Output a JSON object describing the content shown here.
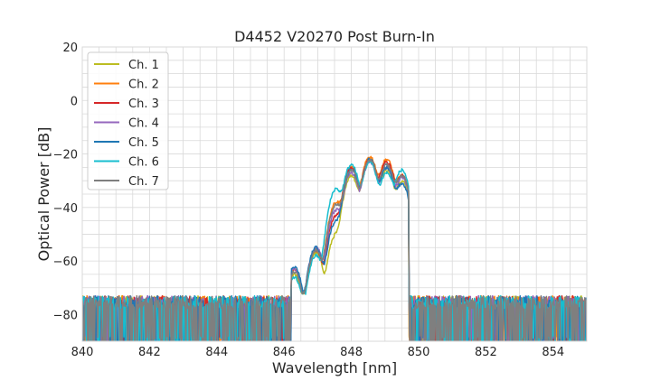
{
  "chart_data": {
    "type": "line",
    "title": "D4452 V20270 Post Burn-In",
    "xlabel": "Wavelength [nm]",
    "ylabel": "Optical Power [dB]",
    "xlim": [
      840,
      855
    ],
    "ylim": [
      -90,
      20
    ],
    "x_ticks": [
      840,
      842,
      844,
      846,
      848,
      850,
      852,
      854
    ],
    "x_tick_labels": [
      "840",
      "842",
      "844",
      "846",
      "848",
      "850",
      "852",
      "854"
    ],
    "y_ticks": [
      20,
      0,
      -20,
      -40,
      -60,
      -80
    ],
    "y_tick_labels": [
      "20",
      "0",
      "−20",
      "−40",
      "−60",
      "−80"
    ],
    "x_minor_step": 0.5,
    "y_minor_step": 5,
    "grid": true,
    "legend_position": "top-left",
    "noise_floor_mean": -76,
    "passband": [
      846.2,
      849.7
    ],
    "series": [
      {
        "name": "Ch. 1",
        "color": "#bcbd22",
        "peaks": [
          [
            846.3,
            -65
          ],
          [
            846.95,
            -57
          ],
          [
            847.55,
            -50
          ],
          [
            848.0,
            -28
          ],
          [
            848.55,
            -22
          ],
          [
            849.05,
            -26
          ],
          [
            849.5,
            -30
          ]
        ]
      },
      {
        "name": "Ch. 2",
        "color": "#ff7f0e",
        "peaks": [
          [
            846.3,
            -63
          ],
          [
            846.95,
            -56
          ],
          [
            847.55,
            -38
          ],
          [
            848.0,
            -25
          ],
          [
            848.55,
            -21
          ],
          [
            849.05,
            -22
          ],
          [
            849.5,
            -28
          ]
        ]
      },
      {
        "name": "Ch. 3",
        "color": "#d62728",
        "peaks": [
          [
            846.3,
            -63
          ],
          [
            846.95,
            -56
          ],
          [
            847.55,
            -43
          ],
          [
            848.0,
            -25
          ],
          [
            848.55,
            -22
          ],
          [
            849.05,
            -23
          ],
          [
            849.5,
            -28
          ]
        ]
      },
      {
        "name": "Ch. 4",
        "color": "#9467bd",
        "peaks": [
          [
            846.3,
            -63
          ],
          [
            846.95,
            -55
          ],
          [
            847.55,
            -41
          ],
          [
            848.0,
            -27
          ],
          [
            848.55,
            -23
          ],
          [
            849.05,
            -25
          ],
          [
            849.5,
            -29
          ]
        ]
      },
      {
        "name": "Ch. 5",
        "color": "#1f77b4",
        "peaks": [
          [
            846.3,
            -62
          ],
          [
            846.95,
            -55
          ],
          [
            847.55,
            -45
          ],
          [
            848.0,
            -26
          ],
          [
            848.55,
            -22
          ],
          [
            849.05,
            -25
          ],
          [
            849.5,
            -31
          ]
        ]
      },
      {
        "name": "Ch. 6",
        "color": "#17becf",
        "peaks": [
          [
            846.3,
            -66
          ],
          [
            846.95,
            -58
          ],
          [
            847.55,
            -33
          ],
          [
            848.0,
            -24
          ],
          [
            848.55,
            -23
          ],
          [
            849.05,
            -27
          ],
          [
            849.5,
            -26
          ]
        ]
      },
      {
        "name": "Ch. 7",
        "color": "#7f7f7f",
        "peaks": [
          [
            846.3,
            -64
          ],
          [
            846.95,
            -56
          ],
          [
            847.55,
            -39
          ],
          [
            848.0,
            -26
          ],
          [
            848.55,
            -22
          ],
          [
            849.05,
            -24
          ],
          [
            849.5,
            -28
          ]
        ]
      }
    ]
  }
}
